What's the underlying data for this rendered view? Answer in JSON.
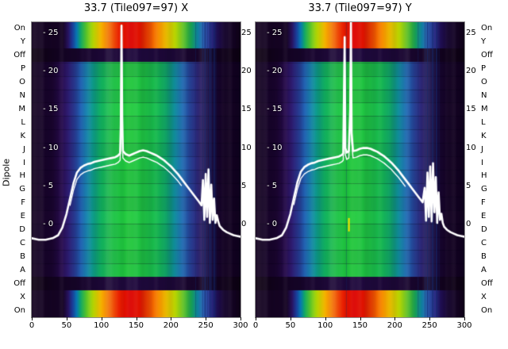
{
  "figure": {
    "background": "#ffffff",
    "dipole_axis_label": "Dipole",
    "inner_tick_prefix": "- "
  },
  "colormap_profiles": {
    "mid": [
      [
        0.0,
        "#140320"
      ],
      [
        0.1,
        "#1b0630"
      ],
      [
        0.145,
        "#290d50"
      ],
      [
        0.175,
        "#32207a"
      ],
      [
        0.205,
        "#2c3f9c"
      ],
      [
        0.235,
        "#2263b6"
      ],
      [
        0.265,
        "#1586ae"
      ],
      [
        0.295,
        "#0fa28c"
      ],
      [
        0.33,
        "#12b262"
      ],
      [
        0.38,
        "#1cc348"
      ],
      [
        0.46,
        "#24cc3e"
      ],
      [
        0.54,
        "#20c846"
      ],
      [
        0.6,
        "#18bc52"
      ],
      [
        0.645,
        "#12ae6e"
      ],
      [
        0.685,
        "#108e9e"
      ],
      [
        0.72,
        "#1b6cb4"
      ],
      [
        0.755,
        "#28489e"
      ],
      [
        0.79,
        "#2e2a7c"
      ],
      [
        0.825,
        "#271656"
      ],
      [
        0.86,
        "#1c0938"
      ],
      [
        0.92,
        "#150424"
      ],
      [
        1.0,
        "#120320"
      ]
    ],
    "on": [
      [
        0.0,
        "#140320"
      ],
      [
        0.15,
        "#160525"
      ],
      [
        0.175,
        "#2a1464"
      ],
      [
        0.195,
        "#1d40a2"
      ],
      [
        0.215,
        "#0a80c0"
      ],
      [
        0.235,
        "#10a763"
      ],
      [
        0.265,
        "#5ec51e"
      ],
      [
        0.3,
        "#c9dc00"
      ],
      [
        0.335,
        "#f6ae00"
      ],
      [
        0.375,
        "#f26703"
      ],
      [
        0.415,
        "#ea2200"
      ],
      [
        0.47,
        "#dc0300"
      ],
      [
        0.52,
        "#e21500"
      ],
      [
        0.565,
        "#f04f00"
      ],
      [
        0.61,
        "#f89200"
      ],
      [
        0.65,
        "#f3cc00"
      ],
      [
        0.69,
        "#b1d400"
      ],
      [
        0.73,
        "#55bd26"
      ],
      [
        0.765,
        "#17a056"
      ],
      [
        0.795,
        "#0e7f9e"
      ],
      [
        0.825,
        "#1c55b2"
      ],
      [
        0.855,
        "#2c2e8e"
      ],
      [
        0.885,
        "#221058"
      ],
      [
        0.92,
        "#170730"
      ],
      [
        1.0,
        "#110218"
      ]
    ],
    "off": [
      [
        0.0,
        "#0d0212"
      ],
      [
        0.15,
        "#140423"
      ],
      [
        0.32,
        "#1c0835"
      ],
      [
        0.5,
        "#200a3e"
      ],
      [
        0.68,
        "#1c0835"
      ],
      [
        0.85,
        "#140423"
      ],
      [
        1.0,
        "#0d0212"
      ]
    ]
  },
  "chart_data": [
    {
      "type": "heatmap",
      "title": "33.7 (Tile097=97) X",
      "ylabel": "Dipole",
      "x_range": [
        0,
        300
      ],
      "x_ticks": [
        0,
        50,
        100,
        150,
        200,
        250,
        300
      ],
      "power_axis_ticks": [
        25,
        20,
        15,
        10,
        5,
        0
      ],
      "rows": [
        "On",
        "Y",
        "Off",
        "P",
        "O",
        "N",
        "M",
        "L",
        "K",
        "J",
        "I",
        "H",
        "G",
        "F",
        "E",
        "D",
        "C",
        "B",
        "A",
        "Off",
        "X",
        "On"
      ],
      "row_kinds": [
        "on",
        "on",
        "off",
        "mid",
        "mid",
        "mid",
        "mid",
        "mid",
        "mid",
        "mid",
        "mid",
        "mid",
        "mid",
        "mid",
        "mid",
        "mid",
        "mid",
        "mid",
        "mid",
        "off",
        "on",
        "on"
      ],
      "overlay_line": {
        "name": "received-power-db",
        "color": "#ffffff",
        "points": [
          [
            0,
            -1.8
          ],
          [
            10,
            -2
          ],
          [
            20,
            -2
          ],
          [
            30,
            -1.8
          ],
          [
            38,
            -1.4
          ],
          [
            44,
            -0.4
          ],
          [
            50,
            1.4
          ],
          [
            55,
            3.4
          ],
          [
            60,
            5.4
          ],
          [
            65,
            6.8
          ],
          [
            70,
            7.4
          ],
          [
            75,
            7.7
          ],
          [
            80,
            7.9
          ],
          [
            85,
            8
          ],
          [
            90,
            8.2
          ],
          [
            95,
            8.3
          ],
          [
            100,
            8.4
          ],
          [
            105,
            8.5
          ],
          [
            110,
            8.6
          ],
          [
            115,
            8.7
          ],
          [
            120,
            8.8
          ],
          [
            124,
            9
          ],
          [
            127,
            9.3
          ],
          [
            128,
            13
          ],
          [
            129,
            26
          ],
          [
            130,
            14
          ],
          [
            131,
            9.6
          ],
          [
            135,
            9.2
          ],
          [
            140,
            9
          ],
          [
            145,
            9.2
          ],
          [
            150,
            9.4
          ],
          [
            155,
            9.6
          ],
          [
            160,
            9.7
          ],
          [
            165,
            9.6
          ],
          [
            170,
            9.4
          ],
          [
            175,
            9.2
          ],
          [
            180,
            9
          ],
          [
            185,
            8.7
          ],
          [
            190,
            8.4
          ],
          [
            195,
            8
          ],
          [
            200,
            7.6
          ],
          [
            205,
            7.1
          ],
          [
            210,
            6.6
          ],
          [
            215,
            6
          ],
          [
            220,
            5.4
          ],
          [
            225,
            4.8
          ],
          [
            230,
            4.2
          ],
          [
            235,
            3.6
          ],
          [
            240,
            3
          ],
          [
            244,
            2.5
          ],
          [
            246,
            5.8
          ],
          [
            248,
            0.6
          ],
          [
            250,
            6.6
          ],
          [
            252,
            1
          ],
          [
            254,
            7.2
          ],
          [
            256,
            0.2
          ],
          [
            258,
            5.2
          ],
          [
            260,
            0.6
          ],
          [
            262,
            3.4
          ],
          [
            264,
            0.2
          ],
          [
            266,
            1.2
          ],
          [
            268,
            0.4
          ],
          [
            270,
            -0.2
          ],
          [
            275,
            -0.7
          ],
          [
            280,
            -1
          ],
          [
            285,
            -1.2
          ],
          [
            290,
            -1.4
          ],
          [
            295,
            -1.5
          ],
          [
            300,
            -1.6
          ]
        ]
      },
      "artifacts": {
        "line_color": "#142a6e",
        "vertical_lines": [
          {
            "x": 235,
            "w": 1,
            "alpha": 0.35
          },
          {
            "x": 245,
            "w": 1,
            "alpha": 0.5
          },
          {
            "x": 248,
            "w": 2,
            "alpha": 0.6
          },
          {
            "x": 252,
            "w": 1,
            "alpha": 0.5
          },
          {
            "x": 255,
            "w": 2,
            "alpha": 0.65
          },
          {
            "x": 258,
            "w": 1,
            "alpha": 0.5
          },
          {
            "x": 261,
            "w": 2,
            "alpha": 0.6
          },
          {
            "x": 264,
            "w": 1,
            "alpha": 0.4
          }
        ],
        "marks": []
      }
    },
    {
      "type": "heatmap",
      "title": "33.7 (Tile097=97) Y",
      "ylabel": "Dipole",
      "x_range": [
        0,
        300
      ],
      "x_ticks": [
        0,
        50,
        100,
        150,
        200,
        250,
        300
      ],
      "power_axis_ticks": [
        25,
        20,
        15,
        10,
        5,
        0
      ],
      "rows": [
        "On",
        "Y",
        "Off",
        "P",
        "O",
        "N",
        "M",
        "L",
        "K",
        "J",
        "I",
        "H",
        "G",
        "F",
        "E",
        "D",
        "C",
        "B",
        "A",
        "Off",
        "X",
        "On"
      ],
      "row_kinds": [
        "on",
        "on",
        "off",
        "mid",
        "mid",
        "mid",
        "mid",
        "mid",
        "mid",
        "mid",
        "mid",
        "mid",
        "mid",
        "mid",
        "mid",
        "mid",
        "mid",
        "mid",
        "mid",
        "off",
        "on",
        "on"
      ],
      "overlay_line": {
        "name": "received-power-db",
        "color": "#ffffff",
        "points": [
          [
            0,
            -1.8
          ],
          [
            10,
            -2
          ],
          [
            20,
            -2
          ],
          [
            30,
            -1.8
          ],
          [
            38,
            -1.4
          ],
          [
            44,
            -0.4
          ],
          [
            50,
            1.4
          ],
          [
            55,
            3.5
          ],
          [
            60,
            5.5
          ],
          [
            65,
            6.9
          ],
          [
            70,
            7.5
          ],
          [
            75,
            7.8
          ],
          [
            80,
            8
          ],
          [
            85,
            8.1
          ],
          [
            90,
            8.3
          ],
          [
            95,
            8.4
          ],
          [
            100,
            8.5
          ],
          [
            105,
            8.6
          ],
          [
            110,
            8.7
          ],
          [
            115,
            8.8
          ],
          [
            120,
            8.9
          ],
          [
            124,
            9.1
          ],
          [
            126,
            9.3
          ],
          [
            127,
            17
          ],
          [
            128,
            24.5
          ],
          [
            129,
            10
          ],
          [
            131,
            9.4
          ],
          [
            134,
            9.6
          ],
          [
            136,
            15
          ],
          [
            137,
            26.5
          ],
          [
            138,
            12
          ],
          [
            140,
            9.6
          ],
          [
            145,
            9.7
          ],
          [
            150,
            9.9
          ],
          [
            155,
            10
          ],
          [
            160,
            10
          ],
          [
            165,
            9.9
          ],
          [
            170,
            9.7
          ],
          [
            175,
            9.5
          ],
          [
            180,
            9.2
          ],
          [
            185,
            8.9
          ],
          [
            190,
            8.5
          ],
          [
            195,
            8.1
          ],
          [
            200,
            7.6
          ],
          [
            205,
            7.1
          ],
          [
            210,
            6.5
          ],
          [
            215,
            5.9
          ],
          [
            220,
            5.3
          ],
          [
            225,
            4.7
          ],
          [
            230,
            4.1
          ],
          [
            235,
            3.5
          ],
          [
            240,
            2.9
          ],
          [
            243,
            4.8
          ],
          [
            245,
            0.5
          ],
          [
            247,
            6.8
          ],
          [
            249,
            1
          ],
          [
            251,
            7.6
          ],
          [
            253,
            0.4
          ],
          [
            255,
            8
          ],
          [
            257,
            1.6
          ],
          [
            259,
            6.2
          ],
          [
            261,
            0.2
          ],
          [
            263,
            4.2
          ],
          [
            265,
            0.6
          ],
          [
            267,
            1.4
          ],
          [
            269,
            0.2
          ],
          [
            271,
            -0.3
          ],
          [
            275,
            -0.7
          ],
          [
            280,
            -1
          ],
          [
            285,
            -1.2
          ],
          [
            290,
            -1.4
          ],
          [
            295,
            -1.5
          ],
          [
            300,
            -1.6
          ]
        ]
      },
      "artifacts": {
        "line_color": "#142a6e",
        "vertical_lines": [
          {
            "x": 233,
            "w": 1,
            "alpha": 0.35
          },
          {
            "x": 243,
            "w": 1,
            "alpha": 0.5
          },
          {
            "x": 246,
            "w": 2,
            "alpha": 0.6
          },
          {
            "x": 250,
            "w": 1,
            "alpha": 0.55
          },
          {
            "x": 253,
            "w": 2,
            "alpha": 0.65
          },
          {
            "x": 256,
            "w": 1,
            "alpha": 0.5
          },
          {
            "x": 259,
            "w": 2,
            "alpha": 0.6
          },
          {
            "x": 263,
            "w": 1,
            "alpha": 0.45
          },
          {
            "x": 130,
            "w": 1,
            "alpha": 0.3
          }
        ],
        "marks": [
          {
            "x": 133,
            "w": 2,
            "row_from": 14.6,
            "row_to": 15.6,
            "color": "#ffe400"
          }
        ]
      }
    }
  ]
}
